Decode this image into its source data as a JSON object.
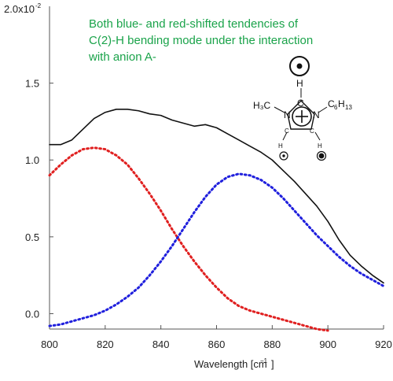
{
  "chart_data": {
    "type": "line",
    "title": "",
    "xlabel": "Wavelength [cm",
    "xlabel_superscript": "−1",
    "xlabel_close": "]",
    "ylabel": "",
    "xlim": [
      800,
      920
    ],
    "ylim": [
      -0.1,
      2.0
    ],
    "x_ticks": [
      800,
      820,
      840,
      860,
      880,
      900,
      920
    ],
    "y_ticks": [
      0.0,
      0.5,
      1.0,
      1.5
    ],
    "y_tick_labels": [
      "0.0",
      "0.5",
      "1.0",
      "1.5"
    ],
    "y_top_label": "2.0x10",
    "y_top_exponent": "-2",
    "grid": false,
    "legend": "none",
    "annotation_lines": [
      "Both blue- and red-shifted tendencies of",
      "C(2)-H bending mode under the interaction",
      "with anion A-"
    ],
    "series": [
      {
        "style": "solid",
        "color": "#111111",
        "x": [
          800,
          804,
          808,
          812,
          816,
          820,
          824,
          828,
          832,
          836,
          840,
          844,
          848,
          852,
          856,
          860,
          864,
          868,
          872,
          876,
          880,
          884,
          888,
          892,
          896,
          900,
          904,
          908,
          912,
          916,
          920
        ],
        "y": [
          1.1,
          1.1,
          1.13,
          1.2,
          1.27,
          1.31,
          1.33,
          1.33,
          1.32,
          1.3,
          1.29,
          1.26,
          1.24,
          1.22,
          1.23,
          1.21,
          1.17,
          1.13,
          1.09,
          1.05,
          1.0,
          0.93,
          0.86,
          0.78,
          0.7,
          0.6,
          0.48,
          0.38,
          0.31,
          0.25,
          0.2
        ]
      },
      {
        "style": "dotted",
        "color": "#e02020",
        "x": [
          800,
          804,
          808,
          812,
          816,
          820,
          824,
          828,
          832,
          836,
          840,
          844,
          848,
          852,
          856,
          860,
          864,
          868,
          872,
          876,
          880,
          884,
          888,
          892,
          896,
          900
        ],
        "y": [
          0.9,
          0.97,
          1.03,
          1.07,
          1.08,
          1.07,
          1.03,
          0.97,
          0.88,
          0.78,
          0.67,
          0.55,
          0.44,
          0.34,
          0.25,
          0.17,
          0.1,
          0.05,
          0.02,
          0.0,
          -0.02,
          -0.04,
          -0.06,
          -0.08,
          -0.1,
          -0.11
        ]
      },
      {
        "style": "dotted",
        "color": "#2020dd",
        "x": [
          800,
          804,
          808,
          812,
          816,
          820,
          824,
          828,
          832,
          836,
          840,
          844,
          848,
          852,
          856,
          860,
          864,
          868,
          872,
          876,
          880,
          884,
          888,
          892,
          896,
          900,
          904,
          908,
          912,
          916,
          920
        ],
        "y": [
          -0.08,
          -0.07,
          -0.05,
          -0.03,
          -0.01,
          0.02,
          0.06,
          0.11,
          0.17,
          0.25,
          0.34,
          0.44,
          0.55,
          0.66,
          0.76,
          0.84,
          0.89,
          0.91,
          0.9,
          0.87,
          0.82,
          0.75,
          0.67,
          0.59,
          0.51,
          0.44,
          0.37,
          0.31,
          0.26,
          0.22,
          0.18
        ]
      }
    ]
  },
  "molecule": {
    "top_h": "H",
    "c2": "C",
    "left_group": "H₃C",
    "right_group_base": "C",
    "right_group_sub1": "6",
    "right_group_h": "H",
    "right_group_sub2": "13",
    "n_left": "N",
    "n_right": "N",
    "c_left": "C",
    "c_right": "C",
    "h_left": "H",
    "h_right": "H"
  }
}
